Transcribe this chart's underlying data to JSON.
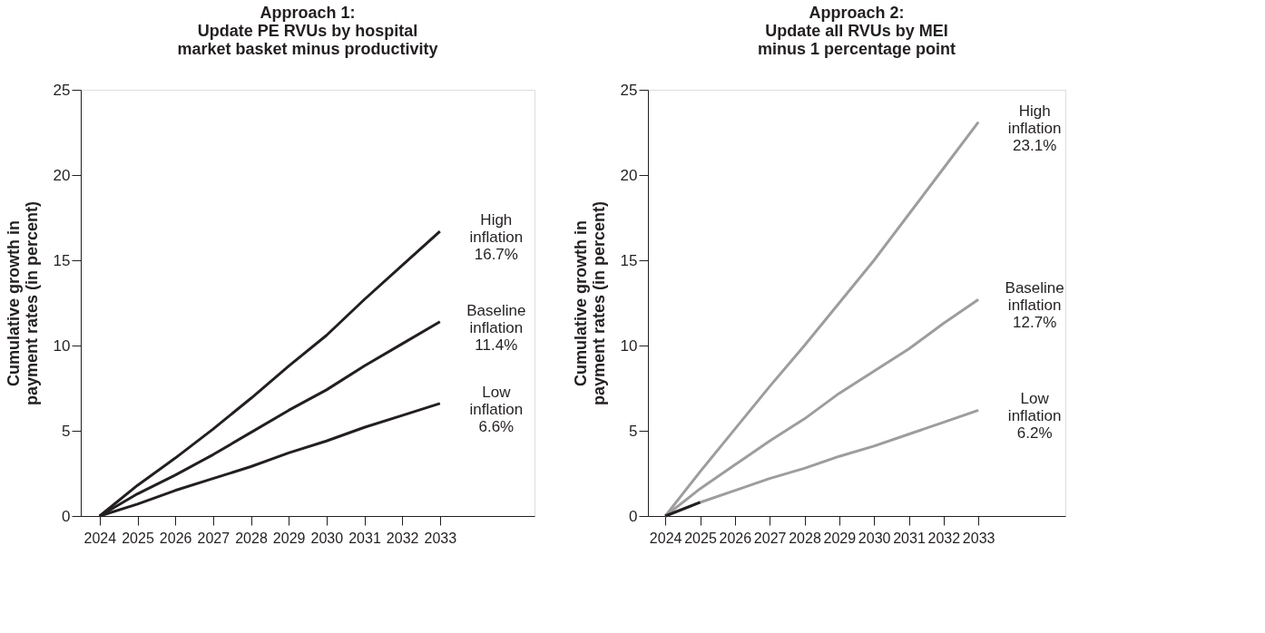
{
  "chart_data": [
    {
      "type": "line",
      "title": [
        "Approach 1:",
        "Update PE RVUs by hospital",
        "market basket minus productivity"
      ],
      "ylabel": [
        "Cumulative growth in",
        "payment rates (in percent)"
      ],
      "x": [
        2024,
        2025,
        2026,
        2027,
        2028,
        2029,
        2030,
        2031,
        2032,
        2033
      ],
      "series": [
        {
          "color": "#231f20",
          "values": [
            0,
            1.8,
            3.4,
            5.1,
            6.9,
            8.8,
            10.6,
            12.7,
            14.7,
            16.7
          ]
        },
        {
          "color": "#231f20",
          "values": [
            0,
            1.3,
            2.4,
            3.6,
            4.9,
            6.2,
            7.4,
            8.8,
            10.1,
            11.4
          ]
        },
        {
          "color": "#231f20",
          "values": [
            0,
            0.7,
            1.5,
            2.2,
            2.9,
            3.7,
            4.4,
            5.2,
            5.9,
            6.6
          ]
        }
      ],
      "xlim": [
        2023.5,
        2035.5
      ],
      "xticks": [
        2024,
        2025,
        2026,
        2027,
        2028,
        2029,
        2030,
        2031,
        2032,
        2033
      ],
      "ylim": [
        0,
        25
      ],
      "yticks": [
        0,
        5,
        10,
        15,
        20,
        25
      ],
      "grid": false,
      "line_style": "solid",
      "annotations": [
        "High\ninflation\n16.7%",
        "Baseline\ninflation\n11.4%",
        "Low\ninflation\n6.6%"
      ]
    },
    {
      "type": "line",
      "title": [
        "Approach 2:",
        "Update all RVUs by MEI",
        "minus 1 percentage point"
      ],
      "ylabel": [
        "Cumulative growth in",
        "payment rates (in percent)"
      ],
      "x": [
        2024,
        2025,
        2026,
        2027,
        2028,
        2029,
        2030,
        2031,
        2032,
        2033
      ],
      "series": [
        {
          "color": "#9d9d9d",
          "values": [
            0,
            2.6,
            5.1,
            7.6,
            10.0,
            12.5,
            15.0,
            17.7,
            20.4,
            23.1
          ]
        },
        {
          "color": "#9d9d9d",
          "values": [
            0,
            1.6,
            3.0,
            4.4,
            5.7,
            7.2,
            8.5,
            9.8,
            11.3,
            12.7
          ]
        },
        {
          "color": "#9d9d9d",
          "values": [
            0,
            0.8,
            1.5,
            2.2,
            2.8,
            3.5,
            4.1,
            4.8,
            5.5,
            6.2
          ]
        },
        {
          "color": "#231f20",
          "x": [
            2024,
            2025
          ],
          "values": [
            0,
            0.8
          ]
        }
      ],
      "xlim": [
        2023.5,
        2035.5
      ],
      "xticks": [
        2024,
        2025,
        2026,
        2027,
        2028,
        2029,
        2030,
        2031,
        2032,
        2033
      ],
      "ylim": [
        0,
        25
      ],
      "yticks": [
        0,
        5,
        10,
        15,
        20,
        25
      ],
      "grid": false,
      "line_style": "solid",
      "annotations": [
        "High\ninflation\n23.1%",
        "Baseline\ninflation\n12.7%",
        "Low\ninflation\n6.2%"
      ]
    }
  ]
}
